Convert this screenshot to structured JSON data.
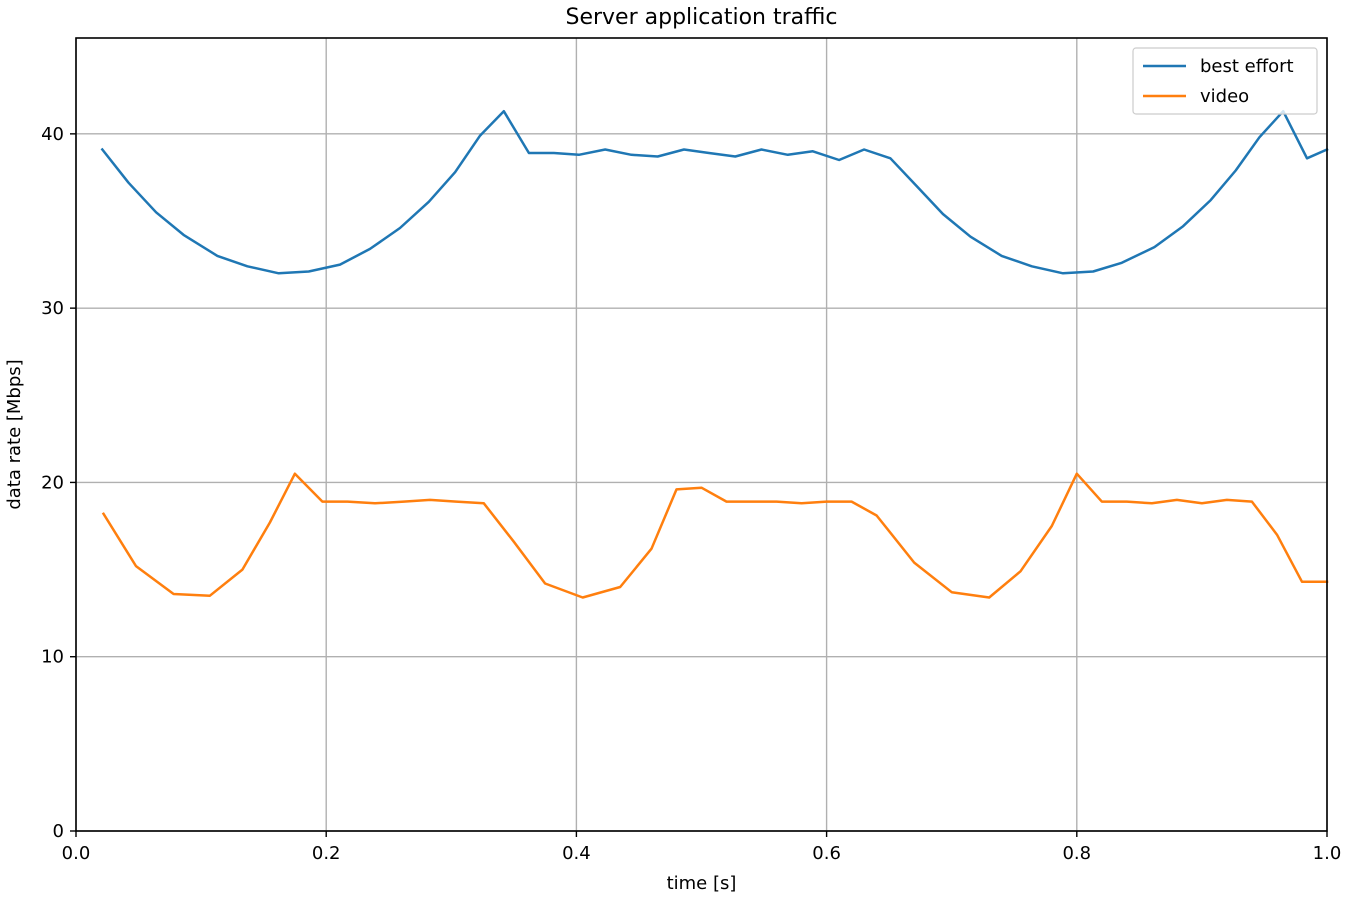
{
  "chart_data": {
    "type": "line",
    "title": "Server application traffic",
    "xlabel": "time [s]",
    "ylabel": "data rate [Mbps]",
    "xlim": [
      0.0,
      1.0
    ],
    "ylim": [
      0,
      45.5
    ],
    "xticks": [
      0.0,
      0.2,
      0.4,
      0.6,
      0.8,
      1.0
    ],
    "xtick_labels": [
      "0.0",
      "0.2",
      "0.4",
      "0.6",
      "0.8",
      "1.0"
    ],
    "yticks": [
      0,
      10,
      20,
      30,
      40
    ],
    "ytick_labels": [
      "0",
      "10",
      "20",
      "30",
      "40"
    ],
    "grid": true,
    "legend_position": "top-right",
    "series": [
      {
        "name": "best effort",
        "color": "#1f77b4",
        "x": [
          0.021,
          0.042,
          0.064,
          0.086,
          0.113,
          0.137,
          0.162,
          0.186,
          0.211,
          0.235,
          0.259,
          0.282,
          0.303,
          0.323,
          0.342,
          0.362,
          0.382,
          0.402,
          0.423,
          0.444,
          0.465,
          0.486,
          0.506,
          0.527,
          0.548,
          0.569,
          0.589,
          0.61,
          0.63,
          0.651,
          0.672,
          0.693,
          0.715,
          0.74,
          0.764,
          0.789,
          0.813,
          0.836,
          0.862,
          0.885,
          0.907,
          0.927,
          0.946,
          0.965,
          0.984,
          1.0
        ],
        "values": [
          39.1,
          37.2,
          35.5,
          34.2,
          33.0,
          32.4,
          32.0,
          32.1,
          32.5,
          33.4,
          34.6,
          36.1,
          37.8,
          39.9,
          41.3,
          38.9,
          38.9,
          38.8,
          39.1,
          38.8,
          38.7,
          39.1,
          38.9,
          38.7,
          39.1,
          38.8,
          39.0,
          38.5,
          39.1,
          38.6,
          37.0,
          35.4,
          34.1,
          33.0,
          32.4,
          32.0,
          32.1,
          32.6,
          33.5,
          34.7,
          36.2,
          37.9,
          39.8,
          41.3,
          38.6,
          39.1
        ]
      },
      {
        "name": "video",
        "color": "#ff7f0e",
        "x": [
          0.022,
          0.048,
          0.078,
          0.107,
          0.133,
          0.155,
          0.175,
          0.197,
          0.217,
          0.239,
          0.262,
          0.283,
          0.304,
          0.326,
          0.35,
          0.375,
          0.405,
          0.435,
          0.46,
          0.48,
          0.5,
          0.52,
          0.54,
          0.56,
          0.58,
          0.6,
          0.62,
          0.64,
          0.67,
          0.7,
          0.73,
          0.755,
          0.78,
          0.8,
          0.82,
          0.84,
          0.86,
          0.88,
          0.9,
          0.92,
          0.94,
          0.96,
          0.98,
          1.0
        ],
        "values": [
          18.2,
          15.2,
          13.6,
          13.5,
          15.0,
          17.7,
          20.5,
          18.9,
          18.9,
          18.8,
          18.9,
          19.0,
          18.9,
          18.8,
          16.6,
          14.2,
          13.4,
          14.0,
          16.2,
          19.6,
          19.7,
          18.9,
          18.9,
          18.9,
          18.8,
          18.9,
          18.9,
          18.1,
          15.4,
          13.7,
          13.4,
          14.9,
          17.5,
          20.5,
          18.9,
          18.9,
          18.8,
          19.0,
          18.8,
          19.0,
          18.9,
          17.0,
          14.3,
          14.3
        ]
      }
    ]
  }
}
